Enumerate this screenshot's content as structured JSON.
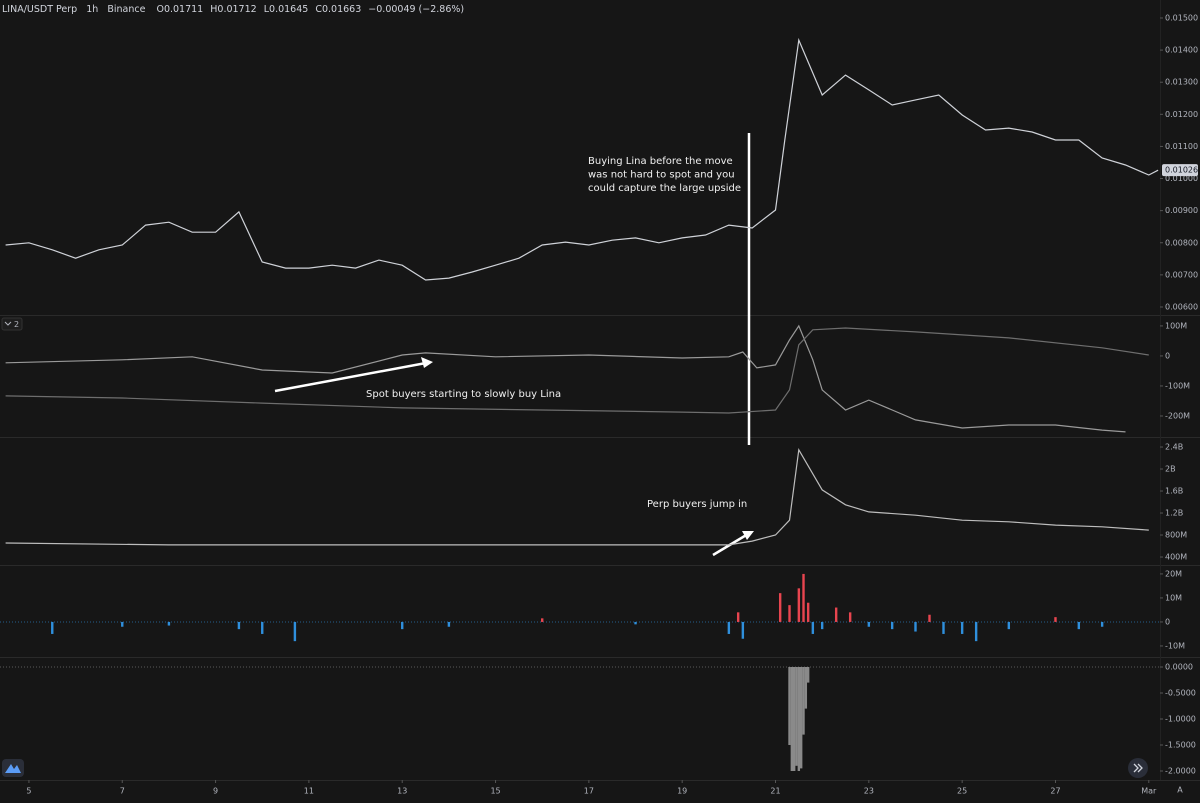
{
  "chart_data": [
    {
      "type": "line",
      "header": [
        "LINA/USDT Perp",
        "1h",
        "Binance"
      ],
      "ohlc_labels": [
        "O0.01711",
        "H0.01712",
        "L0.01645",
        "C0.01663",
        "−0.00049 (−2.86%)"
      ],
      "annotation": [
        "Buying Lina before the move",
        "was not hard to spot and you",
        "could capture the large upside"
      ],
      "xlim": [
        4.38,
        29.24
      ],
      "ylim": [
        0.00575,
        0.01556
      ],
      "yticks": [
        {
          "value": 0.006,
          "label": "0.00600"
        },
        {
          "value": 0.007,
          "label": "0.00700"
        },
        {
          "value": 0.008,
          "label": "0.00800"
        },
        {
          "value": 0.009,
          "label": "0.00900"
        },
        {
          "value": 0.01,
          "label": "0.01000"
        },
        {
          "value": 0.011,
          "label": "0.01100"
        },
        {
          "value": 0.012,
          "label": "0.01200"
        },
        {
          "value": 0.013,
          "label": "0.01300"
        },
        {
          "value": 0.014,
          "label": "0.01400"
        },
        {
          "value": 0.015,
          "label": "0.01500"
        }
      ],
      "last_value": {
        "value": 0.01026,
        "label": "0.01026"
      },
      "grid": false,
      "series": [
        {
          "color": "#cfd2d8",
          "x": [
            4.5,
            5,
            5.5,
            6,
            6.5,
            7,
            7.5,
            8,
            8.5,
            9,
            9.5,
            10,
            10.5,
            11,
            11.5,
            12,
            12.5,
            13,
            13.5,
            14,
            14.5,
            15,
            15.5,
            16,
            16.5,
            17,
            17.5,
            18,
            18.5,
            19,
            19.5,
            20,
            20.5,
            21,
            21.2,
            21.5,
            22,
            22.5,
            23,
            23.5,
            24,
            24.5,
            25,
            25.5,
            26,
            26.5,
            27,
            27.5,
            28,
            28.5,
            29,
            29.2
          ],
          "values": [
            0.00793,
            0.008,
            0.00778,
            0.00752,
            0.00778,
            0.00793,
            0.00855,
            0.00864,
            0.00833,
            0.00833,
            0.00896,
            0.0074,
            0.00721,
            0.00721,
            0.0073,
            0.00721,
            0.00746,
            0.0073,
            0.00684,
            0.0069,
            0.00709,
            0.0073,
            0.00752,
            0.00793,
            0.00802,
            0.00793,
            0.00808,
            0.00815,
            0.008,
            0.00815,
            0.00824,
            0.00855,
            0.00846,
            0.00902,
            0.0112,
            0.01431,
            0.0126,
            0.01322,
            0.01276,
            0.01229,
            0.01245,
            0.0126,
            0.01198,
            0.01151,
            0.01157,
            0.01145,
            0.0112,
            0.0112,
            0.01064,
            0.01042,
            0.01011,
            0.01026
          ]
        }
      ]
    },
    {
      "type": "line",
      "pane_label": "2",
      "annotation": [
        "Spot buyers starting to slowly buy Lina"
      ],
      "xlim": [
        4.38,
        29.24
      ],
      "ylim": [
        -270000000,
        133000000
      ],
      "yticks": [
        {
          "value": 100000000,
          "label": "100M"
        },
        0,
        {
          "value": -100000000,
          "label": "-100M"
        },
        {
          "value": -200000000,
          "label": "-200M"
        }
      ],
      "grid": false,
      "series": [
        {
          "color": "#9a9a9a",
          "x": [
            4.5,
            7,
            8.5,
            10,
            11.5,
            13,
            13.5,
            15,
            17,
            19,
            20,
            20.3,
            20.6,
            21,
            21.3,
            21.5,
            21.8,
            22,
            22.5,
            23,
            23.5,
            24,
            25,
            26,
            27,
            28,
            28.5
          ],
          "values": [
            -23000000,
            -13000000,
            -3000000,
            -47000000,
            -57000000,
            3000000,
            10000000,
            -3000000,
            3000000,
            -7000000,
            -3000000,
            13000000,
            -40000000,
            -30000000,
            53000000,
            100000000,
            -13000000,
            -113000000,
            -180000000,
            -147000000,
            -180000000,
            -213000000,
            -240000000,
            -230000000,
            -230000000,
            -247000000,
            -253000000
          ]
        },
        {
          "color": "#6e6e6e",
          "x": [
            4.5,
            7,
            10,
            13,
            16,
            19,
            20,
            21,
            21.3,
            21.5,
            21.8,
            22.5,
            24,
            26,
            28,
            29
          ],
          "values": [
            -133000000,
            -140000000,
            -157000000,
            -173000000,
            -180000000,
            -187000000,
            -190000000,
            -180000000,
            -113000000,
            37000000,
            87000000,
            93000000,
            80000000,
            60000000,
            27000000,
            3000000
          ]
        }
      ]
    },
    {
      "type": "line",
      "annotation": [
        "Perp buyers jump in"
      ],
      "xlim": [
        4.38,
        29.24
      ],
      "ylim": [
        255000000,
        2564000000
      ],
      "yticks": [
        {
          "value": 2400000000,
          "label": "2.4B"
        },
        {
          "value": 2000000000,
          "label": "2B"
        },
        {
          "value": 1600000000,
          "label": "1.6B"
        },
        {
          "value": 1200000000,
          "label": "1.2B"
        },
        {
          "value": 800000000,
          "label": "800M"
        },
        {
          "value": 400000000,
          "label": "400M"
        }
      ],
      "grid": false,
      "series": [
        {
          "color": "#bdbdbd",
          "x": [
            4.5,
            8,
            12,
            16,
            20,
            20.5,
            21,
            21.3,
            21.5,
            22,
            22.5,
            23,
            24,
            25,
            26,
            27,
            28,
            29
          ],
          "values": [
            655000000,
            620000000,
            620000000,
            620000000,
            620000000,
            690000000,
            800000000,
            1070000000,
            2350000000,
            1620000000,
            1350000000,
            1220000000,
            1160000000,
            1070000000,
            1040000000,
            980000000,
            950000000,
            890000000
          ]
        }
      ]
    },
    {
      "type": "bar",
      "xlim": [
        4.38,
        29.24
      ],
      "ylim": [
        -14600000,
        23300000
      ],
      "yticks": [
        {
          "value": 20000000,
          "label": "20M"
        },
        {
          "value": 10000000,
          "label": "10M"
        },
        0,
        {
          "value": -10000000,
          "label": "-10M"
        }
      ],
      "grid": false,
      "positive_color": "#e8454f",
      "negative_color": "#2f8fdc",
      "series": [
        {
          "x": [
            5.5,
            7,
            8,
            9.5,
            10,
            10.7,
            13,
            14,
            16,
            18,
            20,
            20.2,
            20.3,
            21.1,
            21.3,
            21.5,
            21.6,
            21.7,
            21.8,
            22,
            22.3,
            22.6,
            23,
            23.5,
            24,
            24.3,
            24.6,
            25,
            25.3,
            26,
            27,
            27.5,
            28
          ],
          "values": [
            -5000000,
            -2000000,
            -1500000,
            -3000000,
            -5000000,
            -8000000,
            -3000000,
            -2000000,
            1500000,
            -1000000,
            -5000000,
            4000000,
            -7000000,
            12000000,
            7000000,
            14000000,
            20000000,
            8000000,
            -5000000,
            -3000000,
            6000000,
            4000000,
            -2000000,
            -3000000,
            -4000000,
            3000000,
            -5000000,
            -5000000,
            -8000000,
            -3000000,
            2000000,
            -3000000,
            -2000000
          ]
        }
      ]
    },
    {
      "type": "bar",
      "scale_mode": "A",
      "xlim": [
        4.38,
        29.24
      ],
      "ylim": [
        -2.173,
        0.173
      ],
      "yticks": [
        {
          "value": 0,
          "label": "0.0000"
        },
        {
          "value": -0.5,
          "label": "-0.5000"
        },
        {
          "value": -1,
          "label": "-1.0000"
        },
        {
          "value": -1.5,
          "label": "-1.5000"
        },
        {
          "value": -2,
          "label": "-2.0000"
        }
      ],
      "xticks": [
        5,
        7,
        9,
        11,
        13,
        15,
        17,
        19,
        21,
        23,
        25,
        27,
        {
          "value": 29,
          "label": "Mar"
        }
      ],
      "grid": false,
      "color": "#8a8a8a",
      "series": [
        {
          "x": [
            21.3,
            21.35,
            21.4,
            21.45,
            21.5,
            21.55,
            21.6,
            21.65,
            21.7
          ],
          "values": [
            -1.5,
            -2,
            -2,
            -1.9,
            -2,
            -1.95,
            -1.3,
            -0.8,
            -0.3
          ]
        }
      ]
    }
  ]
}
